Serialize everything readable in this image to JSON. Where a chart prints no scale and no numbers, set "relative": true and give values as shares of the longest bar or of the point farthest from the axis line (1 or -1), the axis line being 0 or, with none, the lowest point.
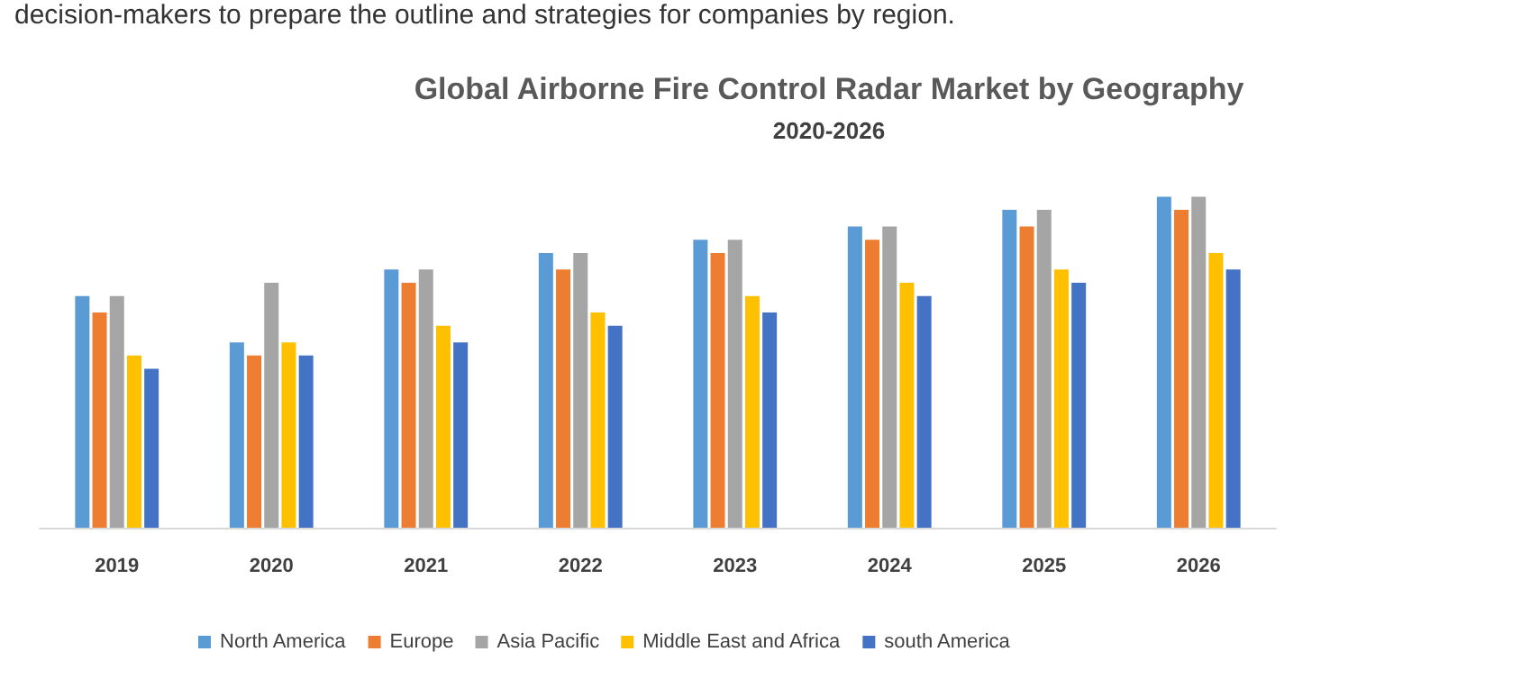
{
  "chart_data": {
    "type": "bar",
    "title": "Global Airborne Fire Control Radar Market by Geography",
    "subtitle": "2020-2026",
    "annotations": [
      "decision-makers to prepare the outline and strategies for companies by region."
    ],
    "categories": [
      "2019",
      "2020",
      "2021",
      "2022",
      "2023",
      "2024",
      "2025",
      "2026"
    ],
    "relative": true,
    "legend": "bottom",
    "series": [
      {
        "name": "North America",
        "color": "#5b9bd5",
        "values": [
          0.7,
          0.56,
          0.78,
          0.83,
          0.87,
          0.91,
          0.96,
          1
        ]
      },
      {
        "name": "Europe",
        "color": "#ed7d31",
        "values": [
          0.65,
          0.52,
          0.74,
          0.78,
          0.83,
          0.87,
          0.91,
          0.96
        ]
      },
      {
        "name": "Asia Pacific",
        "color": "#a5a5a5",
        "values": [
          0.7,
          0.74,
          0.78,
          0.83,
          0.87,
          0.91,
          0.96,
          1
        ]
      },
      {
        "name": "Middle East and Africa",
        "color": "#ffc000",
        "values": [
          0.52,
          0.56,
          0.61,
          0.65,
          0.7,
          0.74,
          0.78,
          0.83
        ]
      },
      {
        "name": "south America",
        "color": "#4472c4",
        "values": [
          0.48,
          0.52,
          0.56,
          0.61,
          0.65,
          0.7,
          0.74,
          0.78
        ]
      }
    ]
  }
}
